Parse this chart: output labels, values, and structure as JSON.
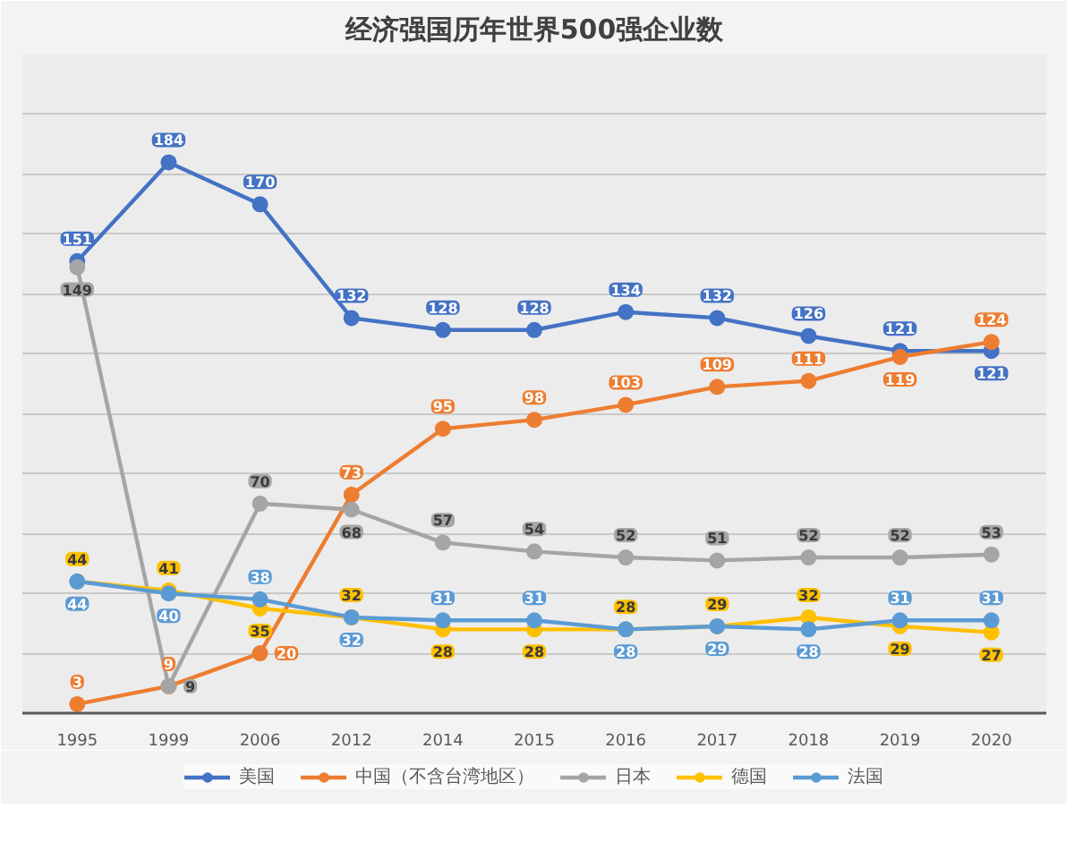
{
  "chart_data": {
    "type": "line",
    "title": "经济强国历年世界500强企业数",
    "categories": [
      "1995",
      "1999",
      "2006",
      "2012",
      "2014",
      "2015",
      "2016",
      "2017",
      "2018",
      "2019",
      "2020"
    ],
    "series": [
      {
        "name": "美国",
        "color": "#4472c4",
        "values": [
          151,
          184,
          170,
          132,
          128,
          128,
          134,
          132,
          126,
          121,
          121
        ]
      },
      {
        "name": "中国（不含台湾地区）",
        "color": "#ed7d31",
        "values": [
          3,
          9,
          20,
          73,
          95,
          98,
          103,
          109,
          111,
          119,
          124
        ]
      },
      {
        "name": "日本",
        "color": "#a5a5a5",
        "values": [
          149,
          9,
          70,
          68,
          57,
          54,
          52,
          51,
          52,
          52,
          53
        ]
      },
      {
        "name": "德国",
        "color": "#ffc000",
        "values": [
          44,
          41,
          35,
          32,
          28,
          28,
          28,
          29,
          32,
          29,
          27
        ]
      },
      {
        "name": "法国",
        "color": "#5b9bd5",
        "values": [
          44,
          40,
          38,
          32,
          31,
          31,
          28,
          29,
          28,
          31,
          31
        ]
      }
    ],
    "ylim": [
      0,
      220
    ],
    "yticks": [
      {
        "value": 0,
        "label": null
      },
      {
        "value": 20,
        "label": null
      },
      {
        "value": 40,
        "label": null
      },
      {
        "value": 60,
        "label": null
      },
      {
        "value": 80,
        "label": null
      },
      {
        "value": 100,
        "label": null
      },
      {
        "value": 120,
        "label": null
      },
      {
        "value": 140,
        "label": null
      },
      {
        "value": 160,
        "label": null
      },
      {
        "value": 180,
        "label": null
      },
      {
        "value": 200,
        "label": null
      },
      {
        "value": 220,
        "label": null
      }
    ],
    "tick_labels": "x",
    "grid": "y",
    "legend": "bottom",
    "marker": "circle",
    "data_labels": true
  }
}
